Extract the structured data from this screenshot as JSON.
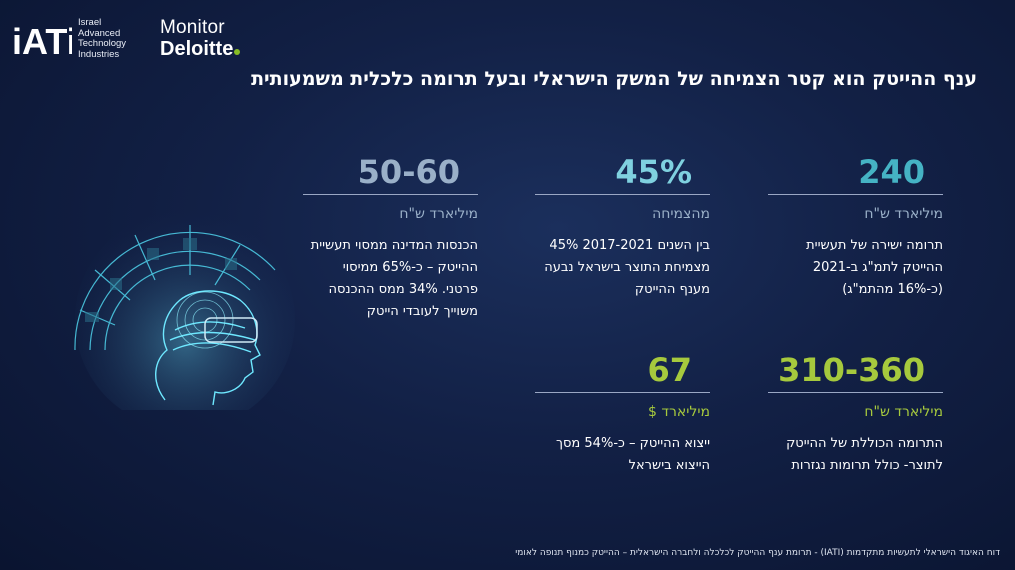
{
  "logos": {
    "iati_mark": "iATi",
    "iati_lines": [
      "Israel",
      "Advanced",
      "Technology",
      "Industries"
    ],
    "monitor": "Monitor",
    "deloitte": "Deloitte"
  },
  "title": "ענף ההייטק הוא קטר הצמיחה של המשק הישראלי ובעל תרומה כלכלית משמעותית",
  "stats": [
    {
      "value": "240",
      "unit": "מיליארד ש\"ח",
      "desc": "תרומה ישירה של תעשיית ההייטק לתמ\"ג ב-2021 (כ-16% מהתמ\"ג)"
    },
    {
      "value": "45%",
      "unit": "מהצמיחה",
      "desc": "בין השנים 2017-2021 45% מצמיחת התוצר בישראל נבעה מענף ההייטק"
    },
    {
      "value": "50-60",
      "unit": "מיליארד ש\"ח",
      "desc": "הכנסות המדינה ממסוי תעשיית ההייטק – כ-65% ממיסוי פרטני. 34% ממס ההכנסה משוייך לעובדי הייטק"
    },
    {
      "value": "310-360",
      "unit": "מיליארד ש\"ח",
      "desc": "התרומה הכוללת של ההייטק לתוצר- כולל תרומות נגזרות"
    },
    {
      "value": "67",
      "unit": "מיליארד $",
      "desc": "ייצוא ההייטק – כ-54% מסך הייצוא בישראל"
    }
  ],
  "footer": "דוח האיגוד הישראלי לתעשיות מתקדמות (IATI) -  תרומת ענף ההייטק לכלכלה ולחברה הישראלית – ההייטק כמנוף תנופה לאומי",
  "colors": {
    "teal": "#45b3c4",
    "light_teal": "#7fd1df",
    "gray_blue": "#9ab0c8",
    "green": "#a6c93d",
    "deloitte_green": "#86bc25"
  }
}
